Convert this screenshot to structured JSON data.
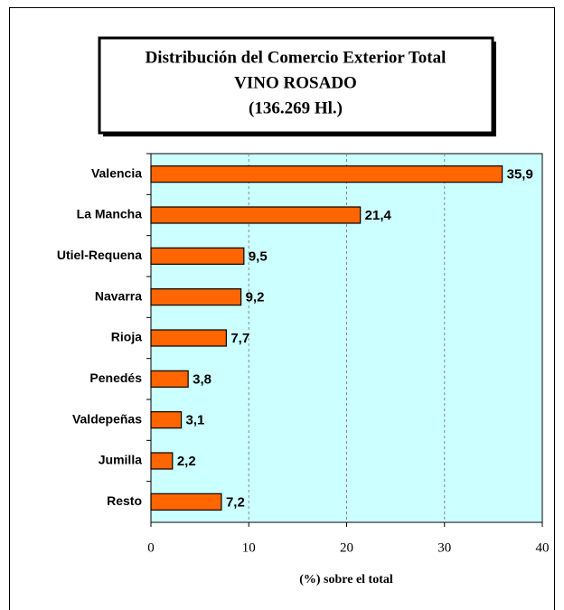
{
  "chart_data": {
    "type": "barh",
    "title": [
      "Distribución del Comercio Exterior Total",
      "VINO ROSADO",
      "(136.269 Hl.)"
    ],
    "xlabel": "(%) sobre el total",
    "categories": [
      "Valencia",
      "La Mancha",
      "Utiel-Requena",
      "Navarra",
      "Rioja",
      "Penedés",
      "Valdepeñas",
      "Jumilla",
      "Resto"
    ],
    "values": [
      35.9,
      21.4,
      9.5,
      9.2,
      7.7,
      3.8,
      3.1,
      2.2,
      7.2
    ],
    "value_labels": [
      "35,9",
      "21,4",
      "9,5",
      "9,2",
      "7,7",
      "3,8",
      "3,1",
      "2,2",
      "7,2"
    ],
    "color": "#ff6600",
    "plot_background": "#ccffff",
    "xlim": [
      0,
      40
    ],
    "xticks": [
      0,
      10,
      20,
      30,
      40
    ],
    "grid": true
  }
}
